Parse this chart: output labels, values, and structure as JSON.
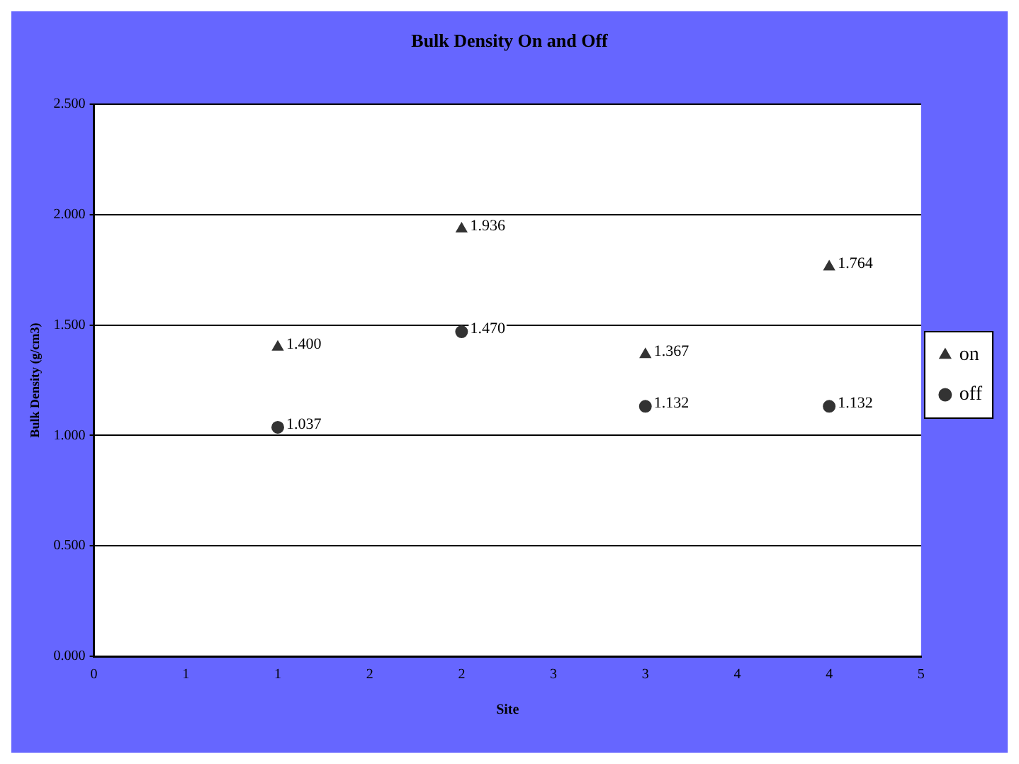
{
  "chart_data": {
    "type": "scatter",
    "title": "Bulk Density On and Off",
    "xlabel": "Site",
    "ylabel": "Bulk Density (g/cm3)",
    "xlim": [
      0,
      4.5
    ],
    "xticks": [
      0,
      {
        "value": 0.5,
        "label": "1"
      },
      1,
      {
        "value": 1.5,
        "label": "2"
      },
      2,
      {
        "value": 2.5,
        "label": "3"
      },
      3,
      {
        "value": 3.5,
        "label": "4"
      },
      4,
      {
        "value": 4.5,
        "label": "5"
      }
    ],
    "ylim": [
      0,
      2.5
    ],
    "yticks": [
      {
        "value": 0,
        "label": "0.000"
      },
      {
        "value": 0.5,
        "label": "0.500"
      },
      {
        "value": 1,
        "label": "1.000"
      },
      {
        "value": 1.5,
        "label": "1.500"
      },
      {
        "value": 2,
        "label": "2.000"
      },
      {
        "value": 2.5,
        "label": "2.500"
      }
    ],
    "grid": "y",
    "legend": "right",
    "series": [
      {
        "name": "on",
        "color": "#333333",
        "marker": "triangle",
        "x": [
          1,
          2,
          3,
          4
        ],
        "values": [
          1.4,
          1.936,
          1.367,
          1.764
        ],
        "value_labels": [
          "1.400",
          "1.936",
          "1.367",
          "1.764"
        ]
      },
      {
        "name": "off",
        "color": "#333333",
        "marker": "circle",
        "x": [
          1,
          2,
          3,
          4
        ],
        "values": [
          1.037,
          1.47,
          1.132,
          1.132
        ],
        "value_labels": [
          "1.037",
          "1.470",
          "1.132",
          "1.132"
        ]
      }
    ]
  }
}
